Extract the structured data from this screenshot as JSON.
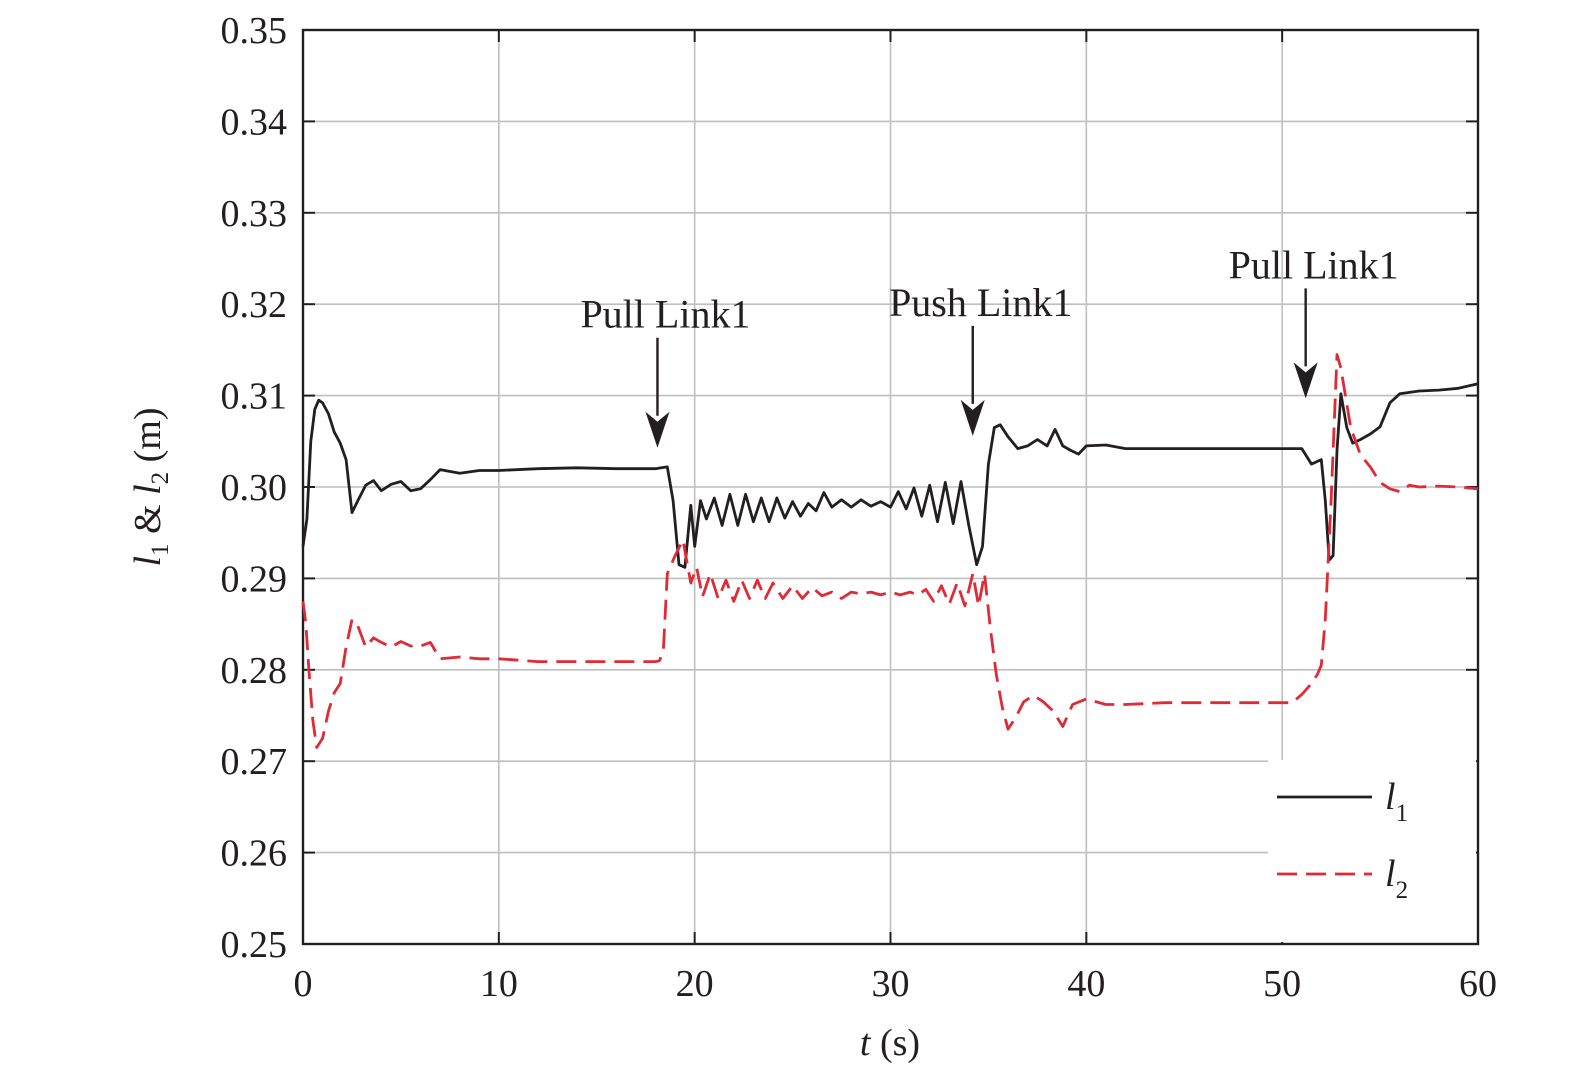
{
  "chart_data": {
    "type": "line",
    "xlabel": {
      "var": "t",
      "unit": " (s)"
    },
    "ylabel": {
      "var1": "l",
      "sub1": "1",
      "amp": " & ",
      "var2": "l",
      "sub2": "2",
      "unit": " (m)"
    },
    "xlim": [
      0,
      60
    ],
    "ylim": [
      0.25,
      0.35
    ],
    "x_ticks": [
      0,
      10,
      20,
      30,
      40,
      50,
      60
    ],
    "x_tick_labels": [
      "0",
      "10",
      "20",
      "30",
      "40",
      "50",
      "60"
    ],
    "y_ticks": [
      0.25,
      0.26,
      0.27,
      0.28,
      0.29,
      0.3,
      0.31,
      0.32,
      0.33,
      0.34,
      0.35
    ],
    "y_tick_labels": [
      "0.25",
      "0.26",
      "0.27",
      "0.28",
      "0.29",
      "0.30",
      "0.31",
      "0.32",
      "0.33",
      "0.34",
      "0.35"
    ],
    "grid": true,
    "legend_position": "bottom-right",
    "series": [
      {
        "name": "l1",
        "legend_var": "l",
        "legend_sub": "1",
        "color": "#231f20",
        "dash": "solid",
        "x": [
          0,
          0.2,
          0.4,
          0.6,
          0.8,
          1.0,
          1.3,
          1.6,
          1.9,
          2.2,
          2.5,
          2.8,
          3.2,
          3.6,
          4.0,
          4.5,
          5.0,
          5.5,
          6.0,
          6.5,
          7.0,
          8.0,
          9.0,
          10,
          12,
          14,
          16,
          18,
          18.3,
          18.6,
          18.9,
          19.2,
          19.5,
          19.8,
          20.0,
          20.3,
          20.6,
          21.0,
          21.4,
          21.8,
          22.2,
          22.6,
          23.0,
          23.4,
          23.8,
          24.2,
          24.6,
          25.0,
          25.4,
          25.8,
          26.2,
          26.6,
          27.0,
          27.5,
          28.0,
          28.5,
          29.0,
          29.5,
          30.0,
          30.4,
          30.8,
          31.2,
          31.6,
          32.0,
          32.4,
          32.8,
          33.2,
          33.6,
          34.0,
          34.4,
          34.7,
          35.0,
          35.3,
          35.6,
          36.0,
          36.5,
          37.0,
          37.5,
          38.0,
          38.4,
          38.8,
          39.2,
          39.6,
          40.0,
          41.0,
          42.0,
          44,
          46,
          48,
          50,
          51.0,
          51.5,
          51.8,
          52.0,
          52.2,
          52.4,
          52.6,
          52.8,
          53.0,
          53.3,
          53.6,
          54.0,
          54.5,
          55.0,
          55.5,
          56.0,
          57.0,
          58.0,
          59.0,
          60.0
        ],
        "y": [
          0.2935,
          0.2965,
          0.305,
          0.3085,
          0.3095,
          0.3092,
          0.308,
          0.306,
          0.3048,
          0.303,
          0.2972,
          0.2985,
          0.3002,
          0.3007,
          0.2996,
          0.3003,
          0.3006,
          0.2996,
          0.2998,
          0.3008,
          0.3019,
          0.3015,
          0.3018,
          0.3018,
          0.302,
          0.3021,
          0.302,
          0.302,
          0.3021,
          0.3022,
          0.2985,
          0.2915,
          0.2912,
          0.298,
          0.2935,
          0.2985,
          0.2965,
          0.2988,
          0.2958,
          0.2992,
          0.2958,
          0.2992,
          0.2962,
          0.2988,
          0.2962,
          0.2988,
          0.2966,
          0.2984,
          0.2968,
          0.2982,
          0.2974,
          0.2994,
          0.2978,
          0.2986,
          0.2978,
          0.2986,
          0.2979,
          0.2984,
          0.2978,
          0.2995,
          0.2976,
          0.2999,
          0.2968,
          0.3002,
          0.2962,
          0.3005,
          0.296,
          0.3006,
          0.2958,
          0.2915,
          0.2935,
          0.3025,
          0.3065,
          0.3068,
          0.3055,
          0.3042,
          0.3045,
          0.3052,
          0.3045,
          0.3063,
          0.3045,
          0.304,
          0.3036,
          0.3045,
          0.3046,
          0.3042,
          0.3042,
          0.3042,
          0.3042,
          0.3042,
          0.3042,
          0.3025,
          0.3028,
          0.303,
          0.2985,
          0.292,
          0.2925,
          0.304,
          0.3102,
          0.3065,
          0.3048,
          0.3052,
          0.3058,
          0.3066,
          0.3092,
          0.3102,
          0.3105,
          0.3106,
          0.3108,
          0.3113
        ]
      },
      {
        "name": "l2",
        "legend_var": "l",
        "legend_sub": "2",
        "color": "#e02a35",
        "dash": "dashed",
        "x": [
          0,
          0.15,
          0.3,
          0.5,
          0.7,
          1.0,
          1.3,
          1.6,
          1.9,
          2.2,
          2.5,
          2.8,
          3.2,
          3.6,
          4.0,
          4.5,
          5.0,
          5.5,
          6.0,
          6.5,
          7.0,
          8.0,
          9.0,
          10,
          12,
          14,
          16,
          18,
          18.2,
          18.4,
          18.6,
          19.0,
          19.4,
          19.8,
          20.1,
          20.4,
          20.8,
          21.2,
          21.6,
          22.0,
          22.4,
          22.8,
          23.2,
          23.6,
          24.0,
          24.5,
          25.0,
          25.5,
          26.0,
          26.5,
          27.0,
          27.5,
          28.0,
          28.5,
          29.0,
          29.5,
          30.0,
          30.5,
          31.0,
          31.4,
          31.8,
          32.2,
          32.6,
          33.0,
          33.4,
          33.8,
          34.2,
          34.5,
          34.8,
          35.1,
          35.4,
          35.7,
          36.0,
          36.4,
          36.8,
          37.3,
          37.8,
          38.3,
          38.8,
          39.3,
          40.0,
          41.0,
          42.0,
          44,
          46,
          48,
          50,
          50.5,
          51.0,
          51.5,
          51.8,
          52.0,
          52.2,
          52.5,
          52.8,
          53.0,
          53.5,
          54.0,
          54.5,
          55.0,
          55.5,
          56.0,
          56.5,
          57.0,
          58.0,
          59.0,
          60.0
        ],
        "y": [
          0.2875,
          0.285,
          0.28,
          0.2745,
          0.2715,
          0.2725,
          0.2755,
          0.2775,
          0.2785,
          0.2825,
          0.2855,
          0.2848,
          0.2825,
          0.2835,
          0.283,
          0.2825,
          0.2831,
          0.2826,
          0.2826,
          0.283,
          0.2812,
          0.2814,
          0.2812,
          0.2812,
          0.2809,
          0.2809,
          0.2809,
          0.2809,
          0.281,
          0.282,
          0.2905,
          0.2925,
          0.2942,
          0.2895,
          0.2912,
          0.288,
          0.2905,
          0.2878,
          0.2898,
          0.2875,
          0.2898,
          0.2878,
          0.2898,
          0.2878,
          0.2895,
          0.2878,
          0.2892,
          0.2878,
          0.289,
          0.2881,
          0.2885,
          0.2878,
          0.2885,
          0.2883,
          0.2885,
          0.2882,
          0.2885,
          0.2882,
          0.2885,
          0.2882,
          0.2888,
          0.2875,
          0.2892,
          0.2872,
          0.2895,
          0.287,
          0.2905,
          0.287,
          0.2905,
          0.2845,
          0.2795,
          0.276,
          0.2735,
          0.2748,
          0.2765,
          0.2772,
          0.2765,
          0.2755,
          0.2738,
          0.2762,
          0.2768,
          0.2762,
          0.2762,
          0.2764,
          0.2764,
          0.2764,
          0.2764,
          0.2764,
          0.2773,
          0.2785,
          0.2795,
          0.2805,
          0.2855,
          0.2985,
          0.3145,
          0.313,
          0.3065,
          0.3035,
          0.3022,
          0.3005,
          0.2998,
          0.2995,
          0.3002,
          0.3,
          0.3001,
          0.3,
          0.2998
        ]
      }
    ],
    "annotations": [
      {
        "text": "Pull Link1",
        "x": 18.1,
        "y": 0.3043
      },
      {
        "text": "Push Link1",
        "x": 34.2,
        "y": 0.3056
      },
      {
        "text": "Pull Link1",
        "x": 51.2,
        "y": 0.3097
      }
    ]
  }
}
